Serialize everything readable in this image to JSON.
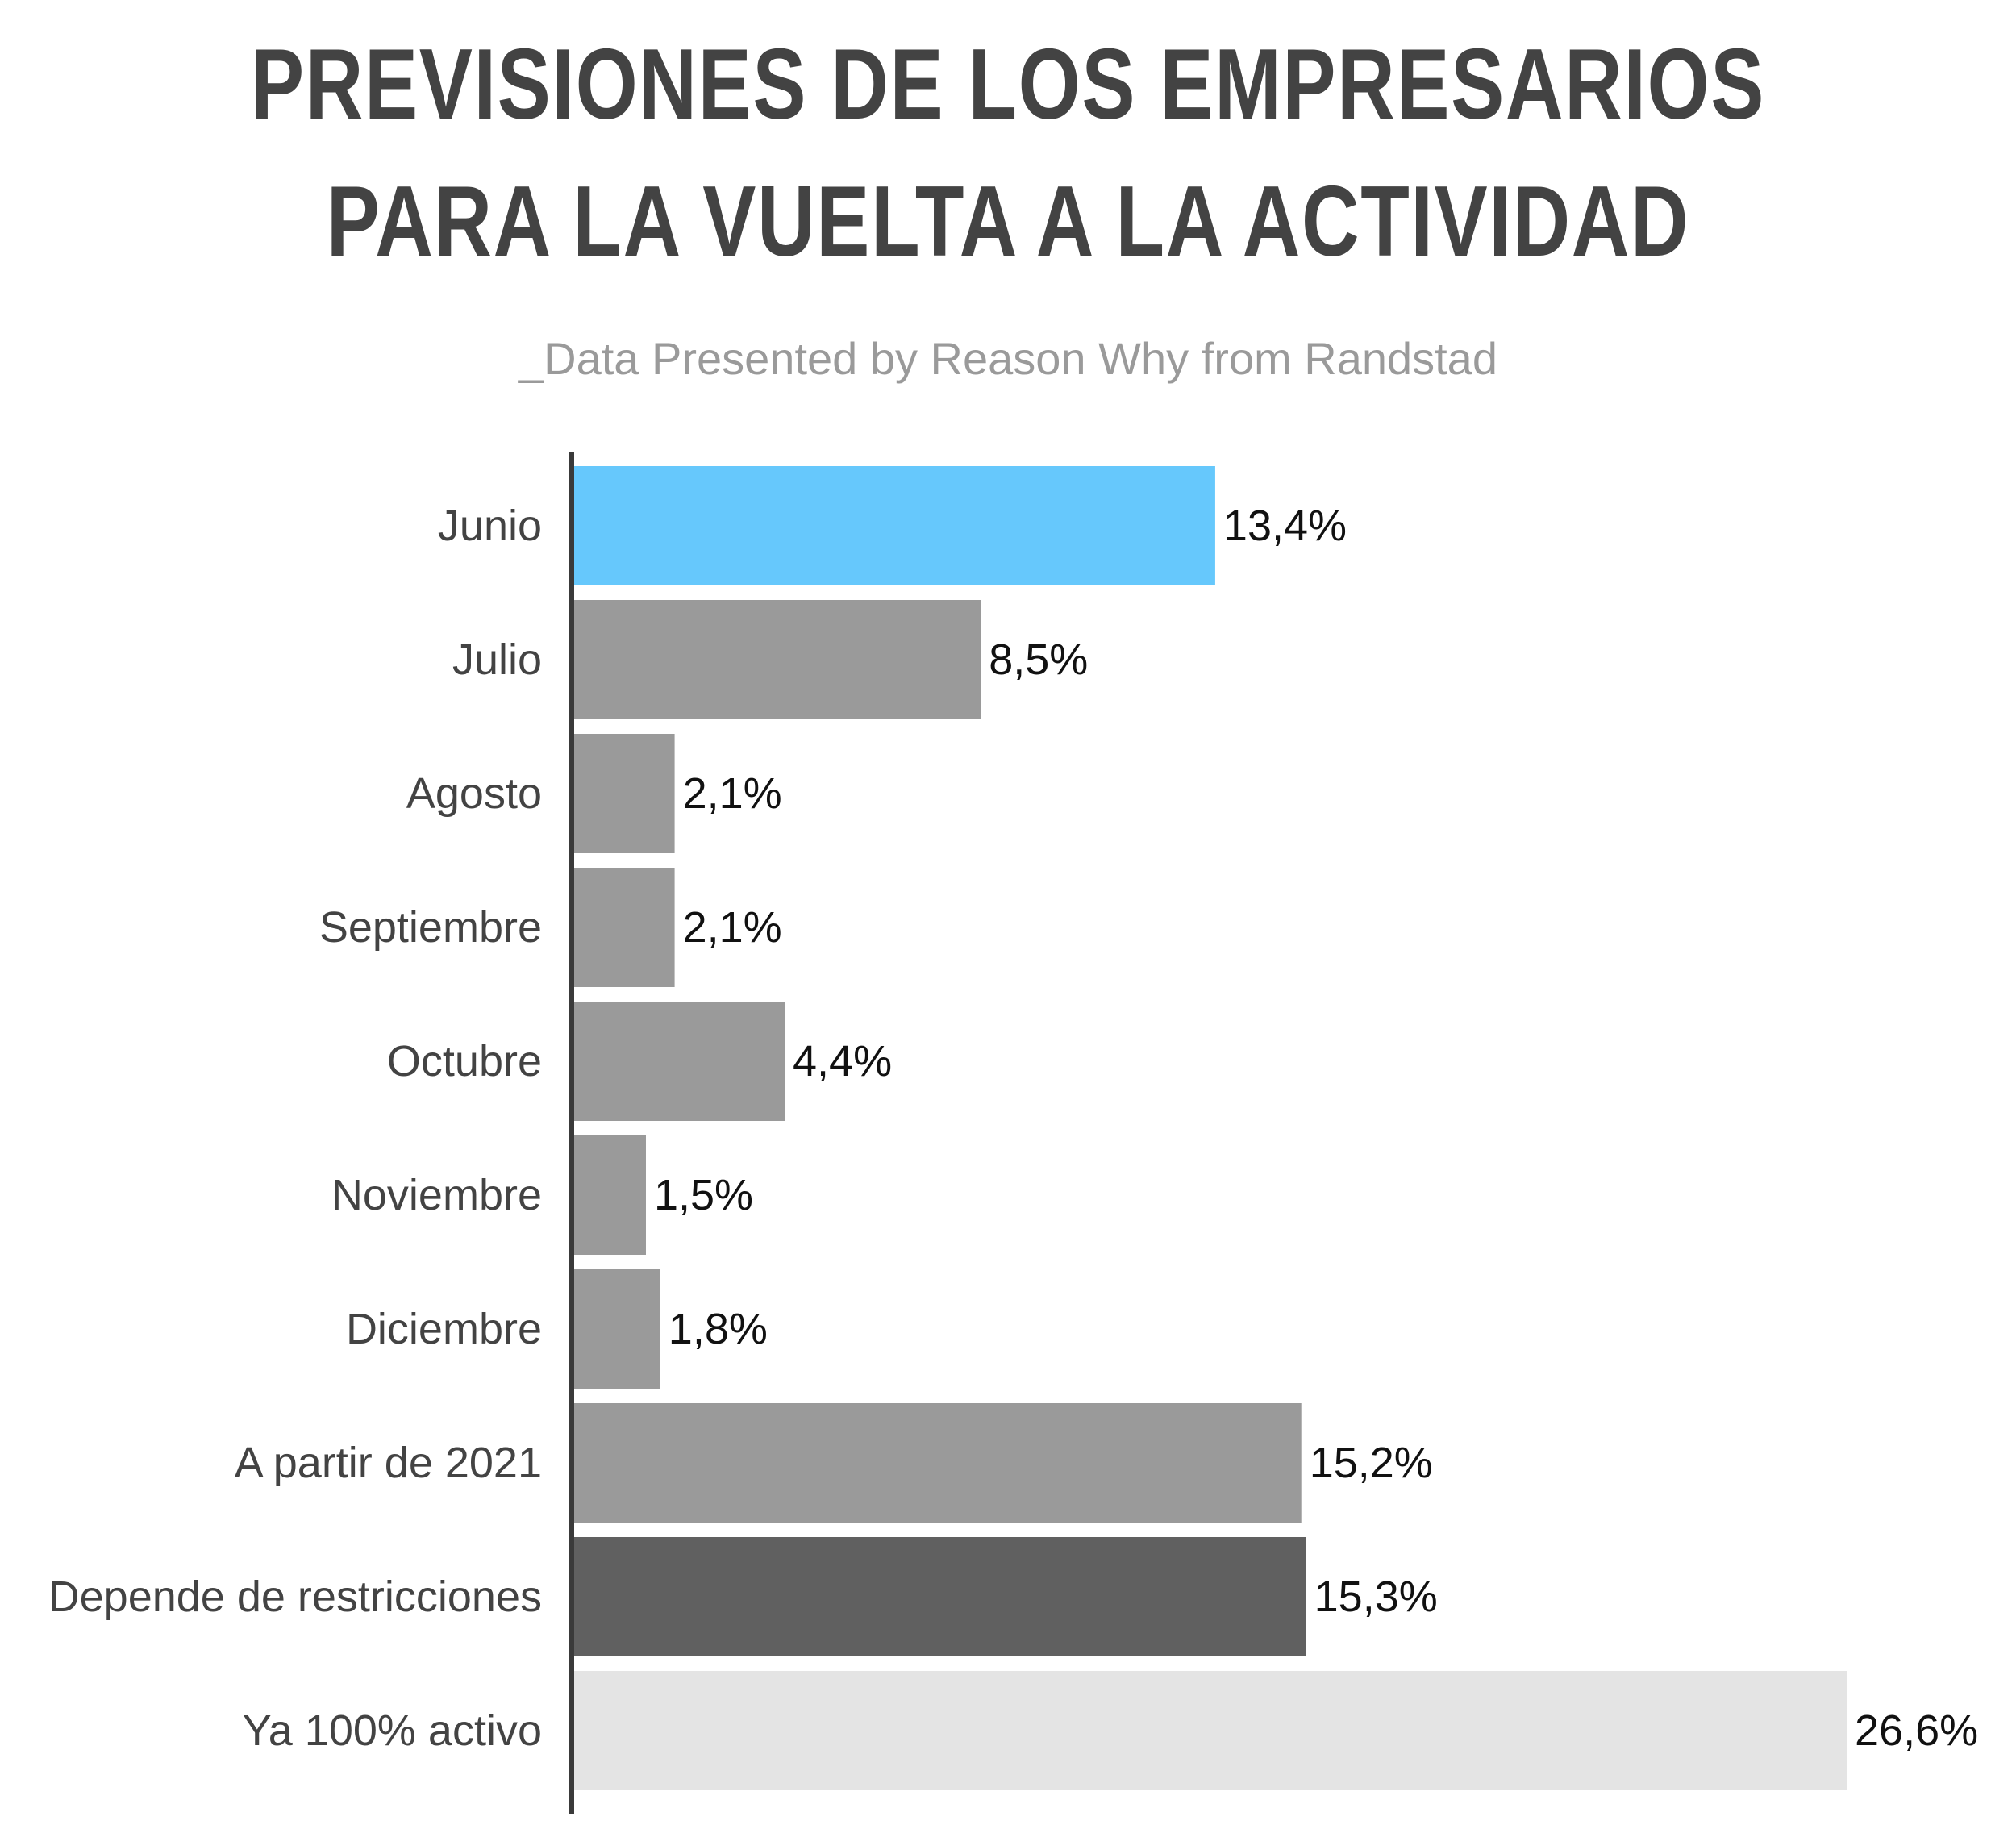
{
  "header": {
    "title_line1": "PREVISIONES DE LOS EMPRESARIOS",
    "title_line2": "PARA LA VUELTA A LA ACTIVIDAD",
    "subtitle": "_Data Presented by Reason Why from Randstad"
  },
  "chart_data": {
    "type": "bar",
    "orientation": "horizontal",
    "title": "PREVISIONES DE LOS EMPRESARIOS PARA LA VUELTA A LA ACTIVIDAD",
    "subtitle": "_Data Presented by Reason Why from Randstad",
    "categories": [
      "Junio",
      "Julio",
      "Agosto",
      "Septiembre",
      "Octubre",
      "Noviembre",
      "Diciembre",
      "A partir de 2021",
      "Depende de restricciones",
      "Ya 100% activo"
    ],
    "values": [
      13.4,
      8.5,
      2.1,
      2.1,
      4.4,
      1.5,
      1.8,
      15.2,
      15.3,
      26.6
    ],
    "value_labels": [
      "13,4%",
      "8,5%",
      "2,1%",
      "2,1%",
      "4,4%",
      "1,5%",
      "1,8%",
      "15,2%",
      "15,3%",
      "26,6%"
    ],
    "bar_colors": [
      "#66c8fc",
      "#9a9a9a",
      "#9a9a9a",
      "#9a9a9a",
      "#9a9a9a",
      "#9a9a9a",
      "#9a9a9a",
      "#9a9a9a",
      "#606060",
      "#e4e4e4"
    ],
    "xlim": [
      0,
      26.6
    ],
    "grid": false,
    "legend": "none",
    "xlabel": "",
    "ylabel": ""
  }
}
